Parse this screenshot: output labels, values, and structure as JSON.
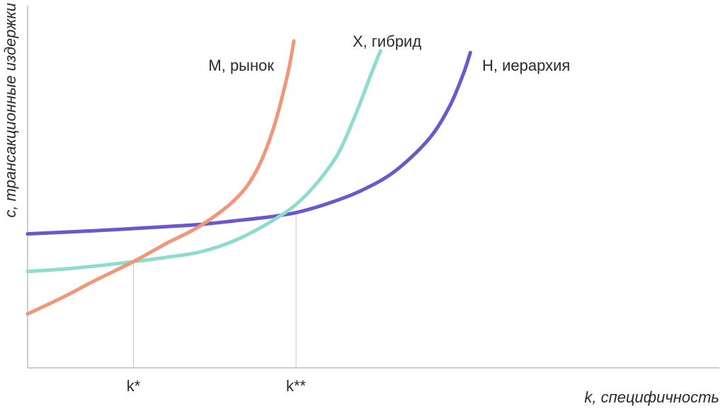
{
  "chart_data": {
    "type": "line",
    "xlabel": "k, специфичность",
    "ylabel": "c, трансакционные издержки",
    "x_ticks": [
      {
        "label": "k*",
        "x": 1.53
      },
      {
        "label": "k**",
        "x": 3.88
      }
    ],
    "xlim": [
      0,
      10
    ],
    "ylim": [
      0,
      10
    ],
    "grid": false,
    "legend": "none (inline labels at curve ends)",
    "series": [
      {
        "name": "M, рынок",
        "color": "#f0967a",
        "points": [
          [
            0,
            1.65
          ],
          [
            0.5,
            2.15
          ],
          [
            1,
            2.7
          ],
          [
            1.53,
            3.25
          ],
          [
            2,
            3.8
          ],
          [
            2.5,
            4.35
          ],
          [
            3,
            5.15
          ],
          [
            3.3,
            6.0
          ],
          [
            3.55,
            7.3
          ],
          [
            3.75,
            8.9
          ],
          [
            3.85,
            10.0
          ]
        ]
      },
      {
        "name": "X, гибрид",
        "color": "#8ddccd",
        "points": [
          [
            0,
            2.95
          ],
          [
            0.5,
            3.02
          ],
          [
            1,
            3.12
          ],
          [
            1.53,
            3.25
          ],
          [
            2,
            3.38
          ],
          [
            2.5,
            3.55
          ],
          [
            3,
            3.9
          ],
          [
            3.5,
            4.45
          ],
          [
            3.88,
            5.0
          ],
          [
            4.2,
            5.7
          ],
          [
            4.5,
            6.6
          ],
          [
            4.75,
            7.8
          ],
          [
            4.95,
            8.9
          ],
          [
            5.1,
            9.7
          ]
        ]
      },
      {
        "name": "H, иерархия",
        "color": "#6a58cc",
        "points": [
          [
            0,
            4.1
          ],
          [
            1,
            4.2
          ],
          [
            2,
            4.32
          ],
          [
            2.56,
            4.4
          ],
          [
            3,
            4.5
          ],
          [
            3.5,
            4.62
          ],
          [
            3.88,
            4.75
          ],
          [
            4.3,
            5.0
          ],
          [
            4.8,
            5.4
          ],
          [
            5.3,
            6.0
          ],
          [
            5.8,
            7.0
          ],
          [
            6.1,
            8.0
          ],
          [
            6.3,
            9.0
          ],
          [
            6.4,
            9.65
          ]
        ]
      }
    ]
  }
}
